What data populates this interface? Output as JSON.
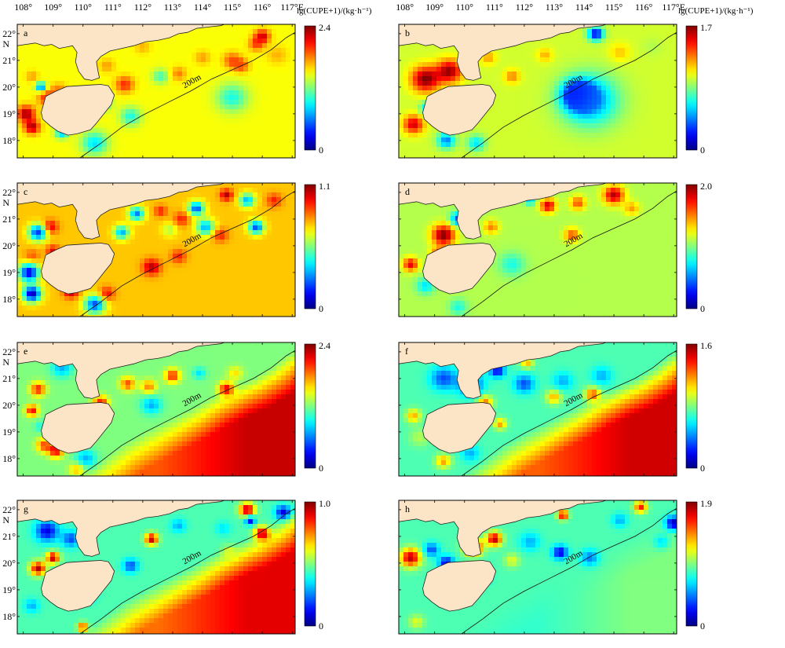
{
  "figure": {
    "top_lon_labels": [
      "108°",
      "109°",
      "110°",
      "111°",
      "112°",
      "113°",
      "114°",
      "115°",
      "116°",
      "117°E"
    ],
    "lat_labels": [
      "22°",
      "21°",
      "20°",
      "19°",
      "18°"
    ],
    "north_label": "N",
    "colorbar_title": "lg(CUPE+1)/(kg·h⁻¹)",
    "isobath_label": "200m"
  },
  "chart_data": [
    {
      "type": "heatmap",
      "panel": "a",
      "colorbar": {
        "min": "0",
        "max": "2.4"
      },
      "background_level": 0.62,
      "blobs": [
        [
          108.1,
          19.0,
          0.97,
          0.35
        ],
        [
          108.3,
          18.5,
          0.95,
          0.3
        ],
        [
          108.8,
          19.6,
          0.85,
          0.35
        ],
        [
          108.3,
          20.4,
          0.72,
          0.25
        ],
        [
          108.6,
          20.0,
          0.2,
          0.2
        ],
        [
          109.2,
          19.9,
          0.75,
          0.3
        ],
        [
          109.3,
          18.3,
          0.3,
          0.25
        ],
        [
          110.7,
          19.4,
          0.4,
          0.3
        ],
        [
          111.4,
          20.1,
          0.85,
          0.35
        ],
        [
          110.8,
          20.8,
          0.72,
          0.3
        ],
        [
          112.0,
          20.5,
          0.62,
          0.6
        ],
        [
          113.2,
          20.5,
          0.75,
          0.3
        ],
        [
          114.0,
          21.1,
          0.72,
          0.3
        ],
        [
          115.0,
          21.0,
          0.8,
          0.35
        ],
        [
          115.3,
          20.8,
          0.8,
          0.3
        ],
        [
          116.0,
          21.9,
          0.92,
          0.3
        ],
        [
          115.8,
          21.6,
          0.8,
          0.3
        ],
        [
          115.0,
          19.6,
          0.4,
          0.6
        ],
        [
          112.6,
          20.4,
          0.42,
          0.3
        ],
        [
          111.6,
          18.9,
          0.4,
          0.4
        ],
        [
          110.4,
          17.9,
          0.35,
          0.5
        ],
        [
          116.5,
          21.2,
          0.7,
          0.4
        ],
        [
          112.0,
          21.5,
          0.7,
          0.3
        ]
      ]
    },
    {
      "type": "heatmap",
      "panel": "b",
      "colorbar": {
        "min": "0",
        "max": "1.7"
      },
      "background_level": 0.58,
      "blobs": [
        [
          108.7,
          20.3,
          1.0,
          0.55
        ],
        [
          109.5,
          20.6,
          0.97,
          0.5
        ],
        [
          108.3,
          18.6,
          0.92,
          0.4
        ],
        [
          108.8,
          19.2,
          0.3,
          0.3
        ],
        [
          109.4,
          18.0,
          0.25,
          0.35
        ],
        [
          110.4,
          17.9,
          0.35,
          0.35
        ],
        [
          113.8,
          19.7,
          0.1,
          0.6
        ],
        [
          114.2,
          19.5,
          0.25,
          1.1
        ],
        [
          111.6,
          20.4,
          0.75,
          0.3
        ],
        [
          112.7,
          21.2,
          0.7,
          0.3
        ],
        [
          114.4,
          22.0,
          0.1,
          0.3
        ],
        [
          115.2,
          21.3,
          0.68,
          0.4
        ],
        [
          116.3,
          21.5,
          0.55,
          0.4
        ],
        [
          110.8,
          21.1,
          0.72,
          0.3
        ]
      ]
    },
    {
      "type": "heatmap",
      "panel": "c",
      "colorbar": {
        "min": "0",
        "max": "1.1"
      },
      "background_level": 0.68,
      "blobs": [
        [
          108.3,
          18.2,
          0.05,
          0.35
        ],
        [
          108.2,
          19.0,
          0.1,
          0.4
        ],
        [
          108.3,
          19.6,
          0.8,
          0.3
        ],
        [
          108.5,
          20.5,
          0.15,
          0.35
        ],
        [
          108.9,
          20.7,
          0.92,
          0.3
        ],
        [
          109.0,
          19.8,
          0.9,
          0.25
        ],
        [
          109.6,
          18.3,
          0.95,
          0.3
        ],
        [
          110.4,
          17.8,
          0.2,
          0.4
        ],
        [
          110.8,
          18.2,
          0.88,
          0.3
        ],
        [
          112.3,
          19.2,
          0.95,
          0.35
        ],
        [
          113.2,
          19.6,
          0.85,
          0.3
        ],
        [
          111.3,
          20.5,
          0.3,
          0.3
        ],
        [
          111.8,
          21.2,
          0.25,
          0.3
        ],
        [
          112.6,
          21.3,
          0.85,
          0.25
        ],
        [
          113.3,
          21.0,
          0.85,
          0.3
        ],
        [
          113.8,
          21.4,
          0.2,
          0.3
        ],
        [
          114.1,
          20.7,
          0.3,
          0.35
        ],
        [
          114.8,
          21.9,
          0.95,
          0.25
        ],
        [
          115.5,
          21.7,
          0.3,
          0.3
        ],
        [
          115.8,
          20.7,
          0.2,
          0.3
        ],
        [
          116.4,
          21.7,
          0.85,
          0.3
        ],
        [
          114.6,
          20.4,
          0.85,
          0.3
        ],
        [
          112.9,
          20.6,
          0.55,
          0.3
        ]
      ]
    },
    {
      "type": "heatmap",
      "panel": "d",
      "colorbar": {
        "min": "0",
        "max": "2.0"
      },
      "background_level": 0.55,
      "blobs": [
        [
          109.3,
          20.4,
          1.0,
          0.45
        ],
        [
          109.2,
          19.6,
          0.95,
          0.35
        ],
        [
          108.2,
          19.3,
          0.9,
          0.3
        ],
        [
          109.8,
          21.0,
          0.2,
          0.3
        ],
        [
          108.7,
          18.5,
          0.35,
          0.35
        ],
        [
          109.8,
          17.7,
          0.4,
          0.35
        ],
        [
          111.6,
          19.3,
          0.4,
          0.5
        ],
        [
          112.8,
          21.5,
          0.92,
          0.3
        ],
        [
          113.6,
          20.4,
          0.8,
          0.3
        ],
        [
          113.8,
          21.6,
          0.8,
          0.3
        ],
        [
          115.0,
          21.9,
          0.95,
          0.4
        ],
        [
          115.6,
          21.4,
          0.72,
          0.3
        ],
        [
          110.9,
          20.7,
          0.75,
          0.3
        ],
        [
          112.2,
          21.7,
          0.3,
          0.2
        ]
      ]
    },
    {
      "type": "heatmap",
      "panel": "e",
      "colorbar": {
        "min": "0",
        "max": "2.4"
      },
      "background_level": 0.5,
      "blobs": [
        [
          108.5,
          20.6,
          0.85,
          0.3
        ],
        [
          108.3,
          19.8,
          0.88,
          0.25
        ],
        [
          108.6,
          19.2,
          0.4,
          0.25
        ],
        [
          109.1,
          18.3,
          0.9,
          0.3
        ],
        [
          108.7,
          18.5,
          0.8,
          0.3
        ],
        [
          110.1,
          18.8,
          0.8,
          0.2
        ],
        [
          110.6,
          20.1,
          0.85,
          0.3
        ],
        [
          111.5,
          20.8,
          0.8,
          0.3
        ],
        [
          112.2,
          20.7,
          0.75,
          0.3
        ],
        [
          113.0,
          21.1,
          0.85,
          0.3
        ],
        [
          113.9,
          21.2,
          0.35,
          0.25
        ],
        [
          114.8,
          20.6,
          0.9,
          0.3
        ],
        [
          115.1,
          21.2,
          0.65,
          0.3
        ],
        [
          112.3,
          20.0,
          0.3,
          0.4
        ],
        [
          110.1,
          18.0,
          0.3,
          0.4
        ],
        [
          109.3,
          21.4,
          0.3,
          0.4
        ],
        [
          109.8,
          17.6,
          0.7,
          0.3
        ]
      ],
      "offshore_level": 0.93
    },
    {
      "type": "heatmap",
      "panel": "f",
      "colorbar": {
        "min": "0",
        "max": "1.6"
      },
      "background_level": 0.45,
      "blobs": [
        [
          109.3,
          21.0,
          0.2,
          0.5
        ],
        [
          110.2,
          20.8,
          0.15,
          0.5
        ],
        [
          111.1,
          21.3,
          0.1,
          0.3
        ],
        [
          112.0,
          20.8,
          0.2,
          0.4
        ],
        [
          113.3,
          20.9,
          0.3,
          0.4
        ],
        [
          114.6,
          21.1,
          0.3,
          0.4
        ],
        [
          108.5,
          18.8,
          0.55,
          0.4
        ],
        [
          108.3,
          19.6,
          0.7,
          0.3
        ],
        [
          110.7,
          20.1,
          0.75,
          0.3
        ],
        [
          114.3,
          20.4,
          0.8,
          0.3
        ],
        [
          113.0,
          20.3,
          0.7,
          0.3
        ],
        [
          109.3,
          17.9,
          0.72,
          0.3
        ],
        [
          110.2,
          18.2,
          0.3,
          0.35
        ],
        [
          112.1,
          21.6,
          0.7,
          0.25
        ],
        [
          111.2,
          19.3,
          0.72,
          0.25
        ]
      ],
      "offshore_level": 0.92
    },
    {
      "type": "heatmap",
      "panel": "g",
      "colorbar": {
        "min": "0",
        "max": "1.0"
      },
      "background_level": 0.45,
      "blobs": [
        [
          108.8,
          21.2,
          0.1,
          0.45
        ],
        [
          109.6,
          20.9,
          0.2,
          0.35
        ],
        [
          108.5,
          19.8,
          0.95,
          0.3
        ],
        [
          109.0,
          20.2,
          0.95,
          0.25
        ],
        [
          108.3,
          18.4,
          0.3,
          0.3
        ],
        [
          110.2,
          18.8,
          0.3,
          0.3
        ],
        [
          111.6,
          19.9,
          0.2,
          0.3
        ],
        [
          112.3,
          20.9,
          0.95,
          0.25
        ],
        [
          114.7,
          21.3,
          0.35,
          0.3
        ],
        [
          113.2,
          21.4,
          0.3,
          0.3
        ],
        [
          115.5,
          22.0,
          0.95,
          0.3
        ],
        [
          116.0,
          21.1,
          0.95,
          0.3
        ],
        [
          115.6,
          21.6,
          0.1,
          0.2
        ],
        [
          114.9,
          20.4,
          0.6,
          0.3
        ],
        [
          116.7,
          21.9,
          0.1,
          0.3
        ],
        [
          110.0,
          17.6,
          0.85,
          0.2
        ]
      ],
      "offshore_level": 0.9
    },
    {
      "type": "heatmap",
      "panel": "h",
      "colorbar": {
        "min": "0",
        "max": "1.9"
      },
      "background_level": 0.45,
      "blobs": [
        [
          108.2,
          20.2,
          0.95,
          0.4
        ],
        [
          108.9,
          20.5,
          0.2,
          0.3
        ],
        [
          109.4,
          20.0,
          0.1,
          0.3
        ],
        [
          110.3,
          20.6,
          1.0,
          0.35
        ],
        [
          111.0,
          20.9,
          0.95,
          0.3
        ],
        [
          110.6,
          19.5,
          0.25,
          0.3
        ],
        [
          113.2,
          20.4,
          0.1,
          0.3
        ],
        [
          112.2,
          20.8,
          0.3,
          0.4
        ],
        [
          114.2,
          20.2,
          0.25,
          0.35
        ],
        [
          115.2,
          21.6,
          0.3,
          0.3
        ],
        [
          117.0,
          21.5,
          0.05,
          0.3
        ],
        [
          113.3,
          21.8,
          0.95,
          0.2
        ],
        [
          115.9,
          22.1,
          0.85,
          0.25
        ],
        [
          108.4,
          17.8,
          0.6,
          0.3
        ],
        [
          111.6,
          20.1,
          0.6,
          0.3
        ],
        [
          116.6,
          20.8,
          0.35,
          0.3
        ]
      ],
      "offshore_level": 0.5
    }
  ]
}
